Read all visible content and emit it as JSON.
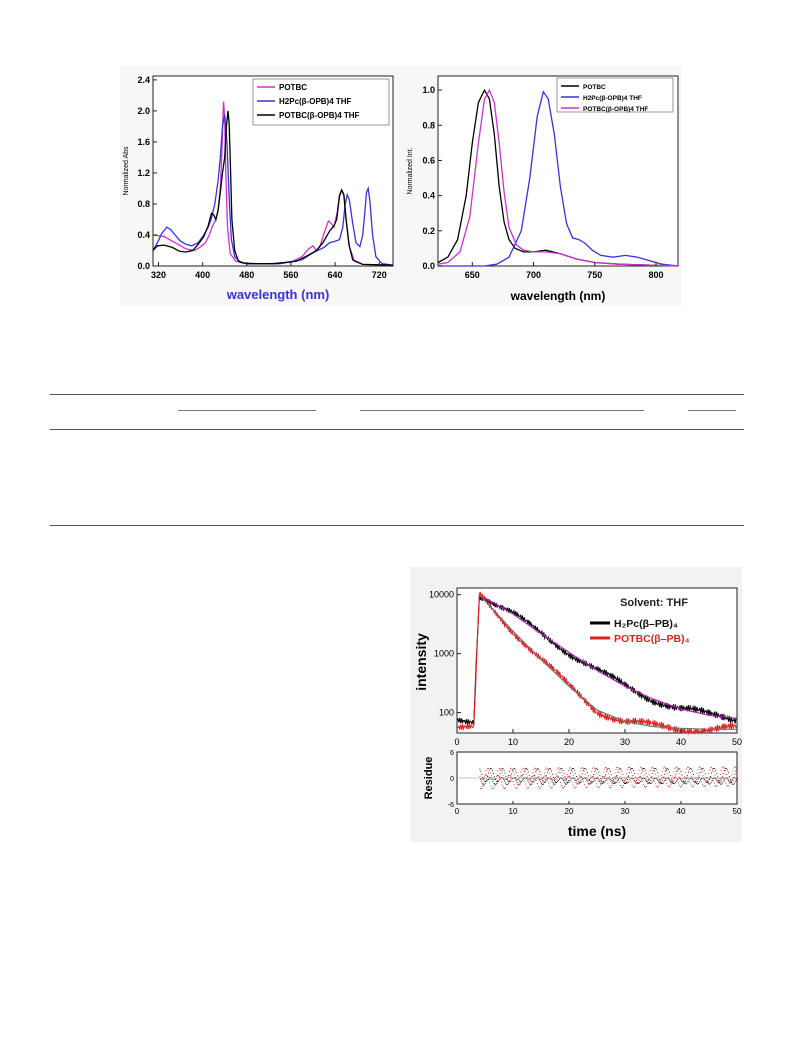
{
  "absorption_chart": {
    "chart_data": {
      "type": "line",
      "xlabel": "wavelength (nm)",
      "ylabel": "Normalized Abs",
      "xlim": [
        310,
        745
      ],
      "ylim": [
        0,
        2.45
      ],
      "x_ticks": [
        "320",
        "400",
        "480",
        "560",
        "640",
        "720"
      ],
      "y_ticks": [
        "0.0",
        "0.4",
        "0.8",
        "1.2",
        "1.6",
        "2.0",
        "2.4"
      ],
      "legend_position": "top-right",
      "series": [
        {
          "name": "POTBC",
          "color": "#cc33cc",
          "points": [
            [
              310,
              0.4
            ],
            [
              330,
              0.38
            ],
            [
              350,
              0.3
            ],
            [
              370,
              0.22
            ],
            [
              385,
              0.2
            ],
            [
              395,
              0.24
            ],
            [
              405,
              0.3
            ],
            [
              412,
              0.4
            ],
            [
              418,
              0.52
            ],
            [
              424,
              0.6
            ],
            [
              428,
              0.72
            ],
            [
              432,
              1.0
            ],
            [
              435,
              1.5
            ],
            [
              437,
              2.0
            ],
            [
              438,
              2.12
            ],
            [
              440,
              1.9
            ],
            [
              442,
              1.2
            ],
            [
              445,
              0.5
            ],
            [
              450,
              0.16
            ],
            [
              460,
              0.06
            ],
            [
              480,
              0.03
            ],
            [
              520,
              0.03
            ],
            [
              560,
              0.05
            ],
            [
              580,
              0.12
            ],
            [
              592,
              0.22
            ],
            [
              600,
              0.26
            ],
            [
              606,
              0.2
            ],
            [
              612,
              0.24
            ],
            [
              620,
              0.42
            ],
            [
              628,
              0.58
            ],
            [
              633,
              0.55
            ],
            [
              638,
              0.5
            ],
            [
              644,
              0.7
            ],
            [
              648,
              0.92
            ],
            [
              652,
              0.98
            ],
            [
              656,
              0.9
            ],
            [
              660,
              0.6
            ],
            [
              666,
              0.25
            ],
            [
              675,
              0.06
            ],
            [
              690,
              0.02
            ],
            [
              745,
              0.01
            ]
          ]
        },
        {
          "name": "H2Pc(β-OPB)4 THF",
          "color": "#3a32d6",
          "points": [
            [
              310,
              0.2
            ],
            [
              318,
              0.3
            ],
            [
              326,
              0.42
            ],
            [
              335,
              0.5
            ],
            [
              342,
              0.47
            ],
            [
              350,
              0.4
            ],
            [
              360,
              0.32
            ],
            [
              370,
              0.28
            ],
            [
              380,
              0.26
            ],
            [
              392,
              0.3
            ],
            [
              402,
              0.4
            ],
            [
              410,
              0.5
            ],
            [
              416,
              0.62
            ],
            [
              422,
              0.8
            ],
            [
              428,
              1.1
            ],
            [
              432,
              1.4
            ],
            [
              436,
              1.8
            ],
            [
              440,
              1.95
            ],
            [
              444,
              1.6
            ],
            [
              448,
              0.9
            ],
            [
              452,
              0.35
            ],
            [
              458,
              0.12
            ],
            [
              470,
              0.04
            ],
            [
              500,
              0.03
            ],
            [
              540,
              0.03
            ],
            [
              580,
              0.08
            ],
            [
              600,
              0.17
            ],
            [
              620,
              0.24
            ],
            [
              630,
              0.3
            ],
            [
              640,
              0.32
            ],
            [
              648,
              0.34
            ],
            [
              654,
              0.5
            ],
            [
              658,
              0.78
            ],
            [
              662,
              0.92
            ],
            [
              666,
              0.85
            ],
            [
              672,
              0.55
            ],
            [
              678,
              0.3
            ],
            [
              685,
              0.25
            ],
            [
              690,
              0.4
            ],
            [
              694,
              0.7
            ],
            [
              697,
              0.95
            ],
            [
              700,
              1.0
            ],
            [
              703,
              0.85
            ],
            [
              708,
              0.4
            ],
            [
              714,
              0.12
            ],
            [
              725,
              0.03
            ],
            [
              745,
              0.01
            ]
          ]
        },
        {
          "name": "POTBC(β-OPB)4 THF",
          "color": "#000000",
          "points": [
            [
              310,
              0.2
            ],
            [
              318,
              0.26
            ],
            [
              330,
              0.27
            ],
            [
              345,
              0.24
            ],
            [
              358,
              0.19
            ],
            [
              370,
              0.18
            ],
            [
              382,
              0.2
            ],
            [
              392,
              0.28
            ],
            [
              402,
              0.38
            ],
            [
              410,
              0.52
            ],
            [
              416,
              0.68
            ],
            [
              420,
              0.66
            ],
            [
              424,
              0.6
            ],
            [
              428,
              0.72
            ],
            [
              432,
              0.95
            ],
            [
              436,
              1.2
            ],
            [
              440,
              1.4
            ],
            [
              443,
              1.8
            ],
            [
              446,
              2.0
            ],
            [
              448,
              1.85
            ],
            [
              450,
              1.4
            ],
            [
              453,
              0.6
            ],
            [
              458,
              0.2
            ],
            [
              465,
              0.06
            ],
            [
              480,
              0.03
            ],
            [
              530,
              0.03
            ],
            [
              570,
              0.06
            ],
            [
              592,
              0.14
            ],
            [
              606,
              0.2
            ],
            [
              618,
              0.3
            ],
            [
              630,
              0.45
            ],
            [
              638,
              0.52
            ],
            [
              643,
              0.6
            ],
            [
              648,
              0.9
            ],
            [
              652,
              0.98
            ],
            [
              656,
              0.92
            ],
            [
              660,
              0.6
            ],
            [
              665,
              0.28
            ],
            [
              672,
              0.08
            ],
            [
              690,
              0.02
            ],
            [
              745,
              0.01
            ]
          ]
        }
      ]
    }
  },
  "emission_chart": {
    "chart_data": {
      "type": "line",
      "xlabel": "wavelength (nm)",
      "ylabel": "Normalized Int.",
      "xlim": [
        622,
        818
      ],
      "ylim": [
        0,
        1.08
      ],
      "x_ticks": [
        "650",
        "700",
        "750",
        "800"
      ],
      "y_ticks": [
        "0.0",
        "0.2",
        "0.4",
        "0.6",
        "0.8",
        "1.0"
      ],
      "legend_position": "top-right",
      "series": [
        {
          "name": "POTBC",
          "color": "#000000",
          "points": [
            [
              622,
              0.02
            ],
            [
              630,
              0.05
            ],
            [
              638,
              0.15
            ],
            [
              645,
              0.4
            ],
            [
              650,
              0.7
            ],
            [
              655,
              0.93
            ],
            [
              660,
              1.0
            ],
            [
              664,
              0.95
            ],
            [
              668,
              0.75
            ],
            [
              672,
              0.45
            ],
            [
              676,
              0.25
            ],
            [
              680,
              0.15
            ],
            [
              685,
              0.1
            ],
            [
              692,
              0.08
            ],
            [
              700,
              0.08
            ],
            [
              710,
              0.09
            ],
            [
              722,
              0.07
            ],
            [
              735,
              0.04
            ],
            [
              750,
              0.02
            ],
            [
              770,
              0.01
            ],
            [
              818,
              0.0
            ]
          ]
        },
        {
          "name": "H2Pc(β-OPB)4 THF",
          "color": "#3a32d6",
          "points": [
            [
              622,
              0.0
            ],
            [
              660,
              0.0
            ],
            [
              670,
              0.01
            ],
            [
              680,
              0.05
            ],
            [
              690,
              0.2
            ],
            [
              697,
              0.5
            ],
            [
              703,
              0.85
            ],
            [
              708,
              0.99
            ],
            [
              712,
              0.95
            ],
            [
              717,
              0.75
            ],
            [
              722,
              0.45
            ],
            [
              727,
              0.24
            ],
            [
              732,
              0.16
            ],
            [
              737,
              0.15
            ],
            [
              742,
              0.13
            ],
            [
              748,
              0.09
            ],
            [
              755,
              0.06
            ],
            [
              765,
              0.05
            ],
            [
              775,
              0.06
            ],
            [
              785,
              0.05
            ],
            [
              795,
              0.03
            ],
            [
              805,
              0.01
            ],
            [
              818,
              0.0
            ]
          ]
        },
        {
          "name": "POTBC(β-OPB)4 THF",
          "color": "#cc33cc",
          "points": [
            [
              622,
              0.01
            ],
            [
              630,
              0.02
            ],
            [
              640,
              0.08
            ],
            [
              648,
              0.28
            ],
            [
              655,
              0.7
            ],
            [
              660,
              0.95
            ],
            [
              664,
              1.0
            ],
            [
              668,
              0.93
            ],
            [
              672,
              0.7
            ],
            [
              676,
              0.42
            ],
            [
              680,
              0.22
            ],
            [
              686,
              0.12
            ],
            [
              692,
              0.09
            ],
            [
              700,
              0.08
            ],
            [
              710,
              0.08
            ],
            [
              722,
              0.07
            ],
            [
              735,
              0.04
            ],
            [
              750,
              0.02
            ],
            [
              770,
              0.01
            ],
            [
              818,
              0.0
            ]
          ]
        }
      ]
    }
  },
  "decay_chart": {
    "chart_data": {
      "type": "line",
      "xlabel": "time (ns)",
      "ylabel": "intensity",
      "yscale": "log",
      "xlim": [
        0,
        50
      ],
      "ylim": [
        45,
        13000
      ],
      "x_ticks": [
        "0",
        "10",
        "20",
        "30",
        "40",
        "50"
      ],
      "y_ticks": [
        "100",
        "1000",
        "10000"
      ],
      "annotation": "Solvent: THF",
      "legend_position": "top-right",
      "series": [
        {
          "name": "H₂Pc(β–PB)₄",
          "color": "#000000",
          "fit_color": "#b021b0",
          "points": [
            [
              0,
              75
            ],
            [
              3,
              75
            ],
            [
              3.6,
              1500
            ],
            [
              4,
              10000
            ],
            [
              10,
              4700
            ],
            [
              15,
              2200
            ],
            [
              20,
              1050
            ],
            [
              25,
              520
            ],
            [
              30,
              280
            ],
            [
              35,
              170
            ],
            [
              40,
              115
            ],
            [
              45,
              90
            ],
            [
              50,
              80
            ]
          ]
        },
        {
          "name": "POTBC(β–PB)₄",
          "color": "#e02020",
          "fit_color": "#707070",
          "points": [
            [
              0,
              52
            ],
            [
              3,
              52
            ],
            [
              3.6,
              1500
            ],
            [
              4,
              10000
            ],
            [
              10,
              2400
            ],
            [
              15,
              800
            ],
            [
              20,
              280
            ],
            [
              25,
              110
            ],
            [
              30,
              70
            ],
            [
              35,
              58
            ],
            [
              40,
              54
            ],
            [
              45,
              52
            ],
            [
              50,
              52
            ]
          ]
        }
      ]
    }
  },
  "residue_chart": {
    "chart_data": {
      "type": "scatter",
      "xlabel": "",
      "ylabel": "Residue",
      "xlim": [
        0,
        50
      ],
      "ylim": [
        -6,
        6
      ],
      "x_ticks": [
        "0",
        "10",
        "20",
        "30",
        "40",
        "50"
      ],
      "y_ticks": [
        "-6",
        "0",
        "6"
      ],
      "series": [
        {
          "name": "H₂Pc(β–PB)₄",
          "color": "#000000",
          "x_range": [
            4,
            50
          ],
          "amplitude": 1.6
        },
        {
          "name": "POTBC(β–PB)₄",
          "color": "#e02020",
          "x_range": [
            4,
            50
          ],
          "amplitude": 1.9
        }
      ]
    }
  },
  "table_section": {
    "top_rule": true,
    "header_rule": true,
    "bottom_rule": true
  }
}
